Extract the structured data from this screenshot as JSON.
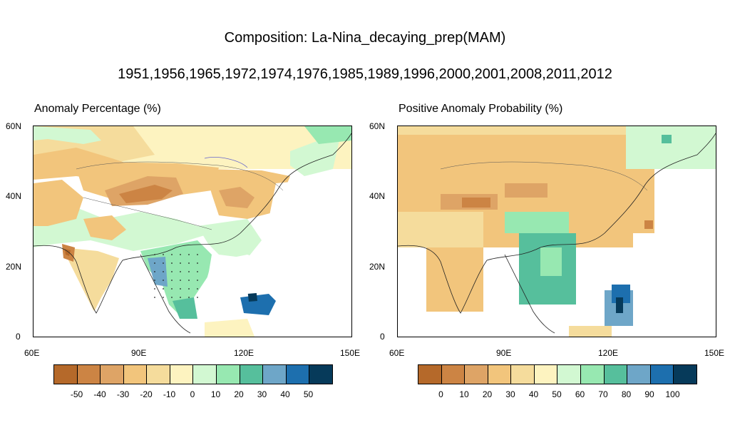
{
  "titles": {
    "main": "Composition: La-Nina_decaying_prep(MAM)",
    "years": "1951,1956,1965,1972,1974,1976,1985,1989,1996,2000,2001,2008,2011,2012"
  },
  "panels": {
    "left": {
      "title": "Anomaly Percentage (%)",
      "x_ticks": [
        "60E",
        "90E",
        "120E",
        "150E"
      ],
      "y_ticks": [
        "60N",
        "40N",
        "20N",
        "0"
      ],
      "colorbar_labels": [
        "-50",
        "-40",
        "-30",
        "-20",
        "-10",
        "0",
        "10",
        "20",
        "30",
        "40",
        "50"
      ]
    },
    "right": {
      "title": "Positive Anomaly Probability (%)",
      "x_ticks": [
        "60E",
        "90E",
        "120E",
        "150E"
      ],
      "y_ticks": [
        "60N",
        "40N",
        "20N",
        "0"
      ],
      "colorbar_labels": [
        "0",
        "10",
        "20",
        "30",
        "40",
        "50",
        "60",
        "70",
        "80",
        "90",
        "100"
      ]
    }
  },
  "colors": {
    "palette": [
      "#b5692a",
      "#cc8444",
      "#dea466",
      "#f2c57c",
      "#f5dc9c",
      "#fdf3c0",
      "#d2f8d2",
      "#97e8b1",
      "#56bf9c",
      "#6ea6c8",
      "#1d6fae",
      "#063a5a"
    ]
  },
  "chart_data": {
    "type": "heatmap",
    "lon_range": [
      60,
      150
    ],
    "lat_range": [
      0,
      60
    ],
    "left_field": [
      {
        "lon": [
          60,
          150
        ],
        "lat": [
          50,
          60
        ],
        "value": -8
      },
      {
        "lon": [
          60,
          100
        ],
        "lat": [
          40,
          50
        ],
        "value": -20
      },
      {
        "lon": [
          78,
          100
        ],
        "lat": [
          38,
          44
        ],
        "value": -40
      },
      {
        "lon": [
          100,
          130
        ],
        "lat": [
          40,
          55
        ],
        "value": -20
      },
      {
        "lon": [
          60,
          80
        ],
        "lat": [
          25,
          40
        ],
        "value": -18
      },
      {
        "lon": [
          68,
          72
        ],
        "lat": [
          21,
          25
        ],
        "value": -48
      },
      {
        "lon": [
          90,
          110
        ],
        "lat": [
          15,
          28
        ],
        "value": 12
      },
      {
        "lon": [
          95,
          110
        ],
        "lat": [
          5,
          20
        ],
        "value": 22
      },
      {
        "lon": [
          118,
          126
        ],
        "lat": [
          5,
          12
        ],
        "value": 42
      },
      {
        "lon": [
          120,
          125
        ],
        "lat": [
          10,
          13
        ],
        "value": 55
      }
    ],
    "right_field": [
      {
        "lon": [
          60,
          150
        ],
        "lat": [
          45,
          60
        ],
        "value": 38
      },
      {
        "lon": [
          60,
          100
        ],
        "lat": [
          30,
          45
        ],
        "value": 30
      },
      {
        "lon": [
          80,
          100
        ],
        "lat": [
          36,
          42
        ],
        "value": 15
      },
      {
        "lon": [
          100,
          130
        ],
        "lat": [
          30,
          45
        ],
        "value": 25
      },
      {
        "lon": [
          95,
          110
        ],
        "lat": [
          8,
          25
        ],
        "value": 72
      },
      {
        "lon": [
          117,
          126
        ],
        "lat": [
          5,
          14
        ],
        "value": 88
      },
      {
        "lon": [
          120,
          124
        ],
        "lat": [
          10,
          14
        ],
        "value": 100
      }
    ]
  }
}
